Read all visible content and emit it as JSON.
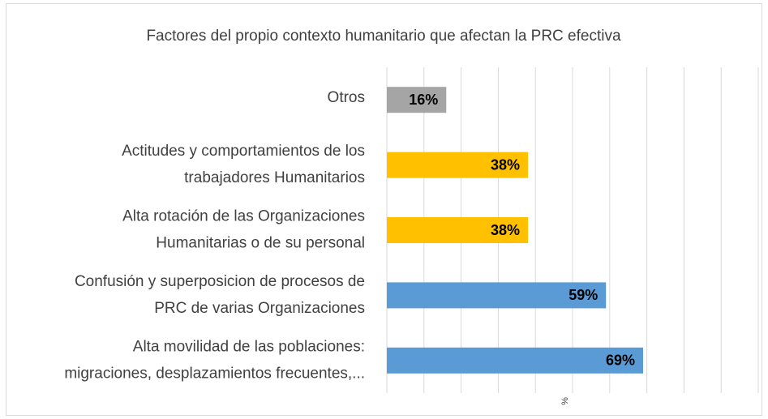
{
  "chart_data": {
    "type": "hbar",
    "title": "Factores del propio contexto humanitario que afectan la PRC efectiva",
    "categories": [
      [
        "Otros"
      ],
      [
        "Actitudes y comportamientos de los",
        "trabajadores Humanitarios"
      ],
      [
        "Alta rotación de las Organizaciones",
        "Humanitarias o de su personal"
      ],
      [
        "Confusión y superposicion de procesos de",
        "PRC de varias Organizaciones"
      ],
      [
        "Alta movilidad de las poblaciones:",
        "migraciones, desplazamientos frecuentes,..."
      ]
    ],
    "values": [
      16,
      38,
      38,
      59,
      69
    ],
    "value_labels": [
      "16%",
      "38%",
      "38%",
      "59%",
      "69%"
    ],
    "colors": [
      "#a5a5a5",
      "#ffc000",
      "#ffc000",
      "#5b9bd5",
      "#5b9bd5"
    ],
    "xlabel": "%",
    "xlim": [
      0,
      100
    ],
    "xticks": [
      0,
      10,
      20,
      30,
      40,
      50,
      60,
      70,
      80,
      90,
      100
    ],
    "grid": true
  }
}
